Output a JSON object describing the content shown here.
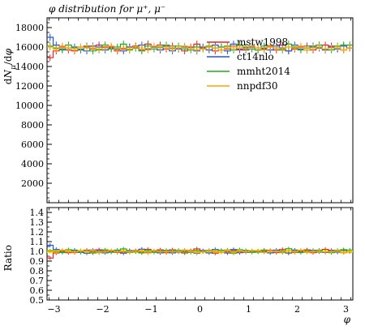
{
  "chart_data": [
    {
      "type": "line",
      "title": "φ distribution for μ⁺, μ⁻",
      "ylabel": "dN_μ/dφ",
      "ylim": [
        0,
        19000
      ],
      "yticks": [
        2000,
        4000,
        6000,
        8000,
        10000,
        12000,
        14000,
        16000,
        18000
      ],
      "yticks_labels": [
        "2000",
        "4000",
        "6000",
        "8000",
        "10000",
        "12000",
        "14000",
        "16000",
        "18000"
      ],
      "xlim": [
        -3.1416,
        3.1416
      ],
      "legend": "top-right",
      "x_edges": [
        -3.1416,
        -3.0159,
        -2.8903,
        -2.7646,
        -2.6389,
        -2.5133,
        -2.3876,
        -2.2619,
        -2.1363,
        -2.0106,
        -1.885,
        -1.7593,
        -1.6336,
        -1.508,
        -1.3823,
        -1.2566,
        -1.131,
        -1.0053,
        -0.8796,
        -0.754,
        -0.6283,
        -0.5027,
        -0.377,
        -0.2513,
        -0.1257,
        0.0,
        0.1257,
        0.2513,
        0.377,
        0.5027,
        0.6283,
        0.754,
        0.8796,
        1.0053,
        1.131,
        1.2566,
        1.3823,
        1.508,
        1.6336,
        1.7593,
        1.885,
        2.0106,
        2.1363,
        2.2619,
        2.3876,
        2.5133,
        2.6389,
        2.7646,
        2.8903,
        3.0159,
        3.1416
      ],
      "series": [
        {
          "name": "mstw1998",
          "color": "#ee2222",
          "values": [
            14900,
            15600,
            16000,
            15700,
            15600,
            16000,
            16100,
            15800,
            16200,
            16000,
            16000,
            15600,
            15800,
            16000,
            16100,
            15700,
            16300,
            16000,
            16200,
            15800,
            16100,
            15900,
            15600,
            16000,
            16300,
            15900,
            16000,
            15600,
            15700,
            15800,
            16100,
            15700,
            15900,
            16000,
            15700,
            15900,
            16100,
            15700,
            16200,
            15600,
            15800,
            16000,
            16100,
            15700,
            15900,
            16200,
            16100,
            15800,
            15700,
            15900
          ]
        },
        {
          "name": "ct14nlo",
          "color": "#2255dd",
          "values": [
            17000,
            16200,
            15800,
            15900,
            16000,
            15700,
            15600,
            16100,
            16000,
            15700,
            15900,
            15800,
            15600,
            16000,
            15900,
            16200,
            15800,
            16000,
            15700,
            16100,
            15600,
            15800,
            16000,
            15900,
            15600,
            16000,
            15700,
            16200,
            16000,
            15600,
            16300,
            15800,
            15700,
            16000,
            15900,
            15800,
            15700,
            16100,
            15900,
            15600,
            16200,
            15800,
            15700,
            16100,
            15900,
            15700,
            16000,
            15800,
            16100,
            15900
          ]
        },
        {
          "name": "mmht2014",
          "color": "#22aa22",
          "values": [
            16100,
            15900,
            15700,
            16200,
            15900,
            15800,
            16000,
            15600,
            15700,
            16200,
            15800,
            16000,
            16300,
            15700,
            15900,
            15600,
            16100,
            15800,
            16000,
            16200,
            15900,
            16100,
            15800,
            15700,
            16000,
            15800,
            16100,
            15900,
            16000,
            16100,
            15700,
            16200,
            16000,
            15800,
            15700,
            16100,
            16000,
            15900,
            15700,
            16300,
            16000,
            15700,
            15900,
            16000,
            16200,
            15800,
            15700,
            16100,
            16200,
            16200
          ]
        },
        {
          "name": "nnpdf30",
          "color": "#ffa500",
          "values": [
            16000,
            15800,
            16100,
            15900,
            15700,
            16000,
            15900,
            16000,
            15800,
            15900,
            16100,
            15700,
            15900,
            15800,
            16000,
            15900,
            15700,
            16100,
            15900,
            16000,
            15800,
            15900,
            16100,
            15900,
            15700,
            15800,
            16000,
            15900,
            15700,
            16000,
            15900,
            16000,
            15800,
            16100,
            15900,
            15700,
            16000,
            15900,
            15800,
            16000,
            15900,
            16100,
            15700,
            15900,
            16000,
            15800,
            15900,
            16000,
            15700,
            15900
          ]
        }
      ]
    },
    {
      "type": "line",
      "ylabel": "Ratio",
      "xlabel": "φ",
      "ylim": [
        0.5,
        1.45
      ],
      "yticks": [
        0.5,
        0.6,
        0.7,
        0.8,
        0.9,
        1.0,
        1.1,
        1.2,
        1.3,
        1.4
      ],
      "yticks_labels": [
        "0.5",
        "0.6",
        "0.7",
        "0.8",
        "0.9",
        "1.0",
        "1.1",
        "1.2",
        "1.3",
        "1.4"
      ],
      "xlim": [
        -3.1416,
        3.1416
      ],
      "xticks": [
        -3,
        -2,
        -1,
        0,
        1,
        2,
        3
      ],
      "xticks_labels": [
        "−3",
        "−2",
        "−1",
        "0",
        "1",
        "2",
        "3"
      ],
      "band_color": "#ffee00",
      "band_range": [
        0.985,
        1.015
      ]
    }
  ]
}
